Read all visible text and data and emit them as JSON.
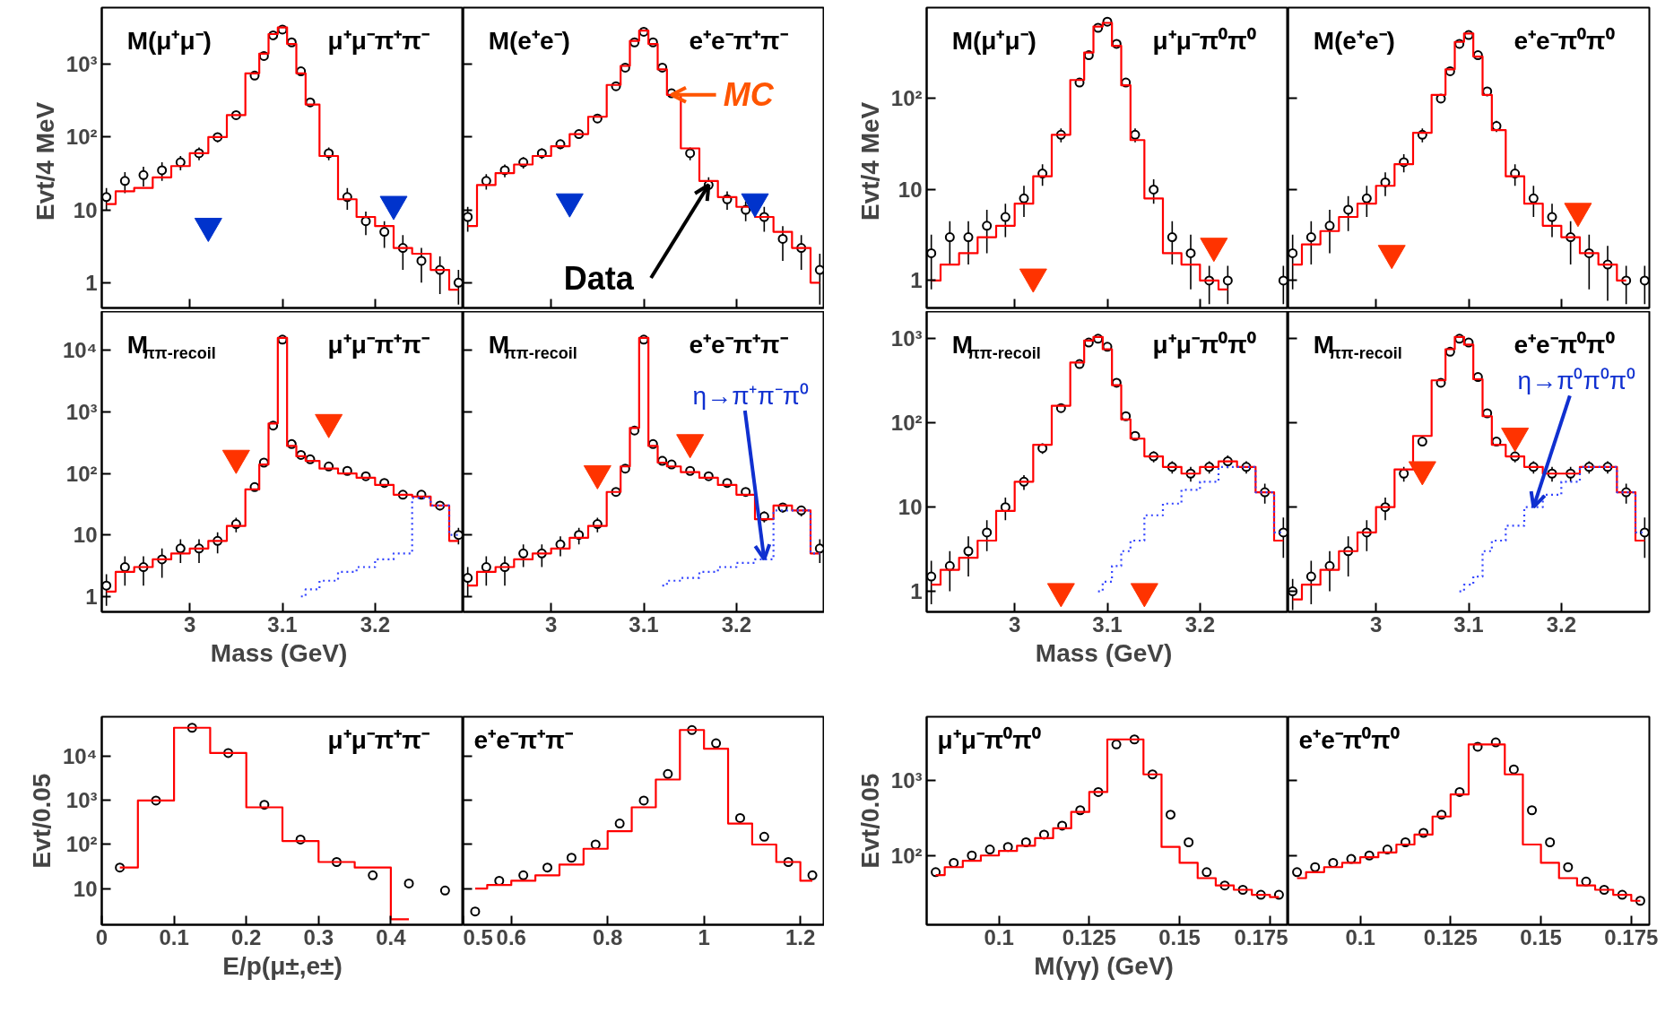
{
  "chart_data": [
    {
      "type": "scatter",
      "annotations": [
        "M(μ⁺μ⁻)",
        "μ⁺μ⁻π⁺π⁻"
      ],
      "ylabel": "Evt/4  MeV",
      "log": true,
      "tick_labels": "y",
      "xlim": [
        2.905,
        3.295
      ],
      "xticks": [
        3,
        3.1,
        3.2
      ],
      "ylim": [
        0.45,
        6000
      ],
      "yticks": [
        1,
        10,
        {
          "value": 100,
          "label": "10²"
        },
        {
          "value": 1000,
          "label": "10³"
        }
      ],
      "x": [
        2.91,
        2.93,
        2.95,
        2.97,
        2.99,
        3.01,
        3.03,
        3.05,
        3.07,
        3.08,
        3.09,
        3.1,
        3.11,
        3.12,
        3.13,
        3.15,
        3.17,
        3.19,
        3.21,
        3.23,
        3.25,
        3.27,
        3.29
      ],
      "series": [
        {
          "marker": "circle",
          "color": "#000000",
          "values": [
            15,
            25,
            30,
            35,
            45,
            60,
            100,
            200,
            700,
            1300,
            2500,
            3000,
            2000,
            800,
            300,
            60,
            15,
            7,
            5,
            3,
            2,
            1.5,
            1
          ],
          "errors": [
            5,
            8,
            9,
            10,
            10,
            12,
            15,
            null,
            null,
            null,
            null,
            null,
            null,
            null,
            null,
            12,
            5,
            2.5,
            2,
            1.5,
            1,
            0.8,
            0.5
          ]
        },
        {
          "type": "step",
          "color": "#ff0000",
          "values": [
            12,
            18,
            20,
            28,
            40,
            60,
            100,
            200,
            750,
            1400,
            2600,
            3200,
            1900,
            750,
            280,
            55,
            14,
            8,
            6,
            3,
            2.5,
            1.5,
            0.8
          ]
        },
        {
          "marker": "triangle",
          "color": "#0033cc",
          "x": [
            3.02,
            3.22
          ],
          "values": [
            6,
            12
          ]
        }
      ]
    },
    {
      "type": "scatter",
      "annotations": [
        "M(e⁺e⁻)",
        "e⁺e⁻π⁺π⁻",
        {
          "text": "MC",
          "x": 3.13,
          "y": 380
        },
        {
          "text": "Data",
          "x": 3.17,
          "y": 22
        }
      ],
      "log": true,
      "tick_labels": false,
      "xlim": [
        2.905,
        3.295
      ],
      "xticks": [
        3,
        3.1,
        3.2
      ],
      "ylim": [
        0.45,
        6000
      ],
      "yticks": [
        1,
        10,
        100,
        1000
      ],
      "x": [
        2.91,
        2.93,
        2.95,
        2.97,
        2.99,
        3.01,
        3.03,
        3.05,
        3.07,
        3.08,
        3.09,
        3.1,
        3.11,
        3.12,
        3.13,
        3.15,
        3.17,
        3.19,
        3.21,
        3.23,
        3.25,
        3.27,
        3.29
      ],
      "series": [
        {
          "marker": "circle",
          "color": "#000000",
          "values": [
            8,
            25,
            35,
            45,
            60,
            80,
            110,
            180,
            500,
            900,
            2000,
            2800,
            2000,
            900,
            400,
            60,
            22,
            14,
            10,
            8,
            4,
            3,
            1.5
          ],
          "errors": [
            3,
            6,
            7,
            8,
            10,
            12,
            15,
            null,
            null,
            null,
            null,
            null,
            null,
            null,
            null,
            12,
            6,
            4,
            3,
            3,
            2,
            1.5,
            1
          ]
        },
        {
          "type": "step",
          "color": "#ff0000",
          "values": [
            6,
            22,
            32,
            42,
            55,
            75,
            110,
            190,
            520,
            950,
            2100,
            2900,
            1900,
            850,
            380,
            70,
            25,
            15,
            11,
            8,
            5,
            3,
            1
          ]
        },
        {
          "marker": "triangle",
          "color": "#0033cc",
          "x": [
            3.02,
            3.22
          ],
          "values": [
            13,
            13
          ]
        }
      ]
    },
    {
      "type": "scatter",
      "annotations": [
        "M(μ⁺μ⁻)",
        "μ⁺μ⁻π⁰π⁰"
      ],
      "ylabel": "Evt/4  MeV",
      "log": true,
      "tick_labels": "y",
      "xlim": [
        2.905,
        3.295
      ],
      "xticks": [
        3,
        3.1,
        3.2
      ],
      "ylim": [
        0.5,
        1000
      ],
      "yticks": [
        1,
        10,
        {
          "value": 100,
          "label": "10²"
        }
      ],
      "x": [
        2.91,
        2.93,
        2.95,
        2.97,
        2.99,
        3.01,
        3.03,
        3.05,
        3.07,
        3.08,
        3.09,
        3.1,
        3.11,
        3.12,
        3.13,
        3.15,
        3.17,
        3.19,
        3.21,
        3.23,
        3.25,
        3.27,
        3.29
      ],
      "series": [
        {
          "marker": "circle",
          "color": "#000000",
          "values": [
            2,
            3,
            3,
            4,
            5,
            8,
            15,
            40,
            150,
            300,
            600,
            700,
            400,
            150,
            40,
            10,
            3,
            2,
            1,
            1,
            null,
            null,
            1
          ],
          "errors": [
            1.2,
            1.5,
            1.5,
            2,
            2,
            3,
            4,
            7,
            null,
            null,
            null,
            null,
            null,
            null,
            7,
            3,
            1.5,
            1.2,
            0.45,
            0.45,
            null,
            null,
            0.45
          ]
        },
        {
          "type": "step",
          "color": "#ff0000",
          "values": [
            1,
            1.5,
            2,
            3,
            4,
            7,
            14,
            40,
            160,
            320,
            620,
            680,
            380,
            140,
            35,
            8,
            2,
            1.5,
            1,
            0.8,
            null,
            null,
            null
          ]
        },
        {
          "marker": "triangle",
          "color": "#ff3300",
          "x": [
            3.02,
            3.215
          ],
          "values": [
            1.1,
            2.4
          ]
        }
      ]
    },
    {
      "type": "scatter",
      "annotations": [
        "M(e⁺e⁻)",
        "e⁺e⁻π⁰π⁰"
      ],
      "log": true,
      "tick_labels": false,
      "xlim": [
        2.905,
        3.295
      ],
      "xticks": [
        3,
        3.1,
        3.2
      ],
      "ylim": [
        0.5,
        1000
      ],
      "yticks": [
        1,
        10,
        100
      ],
      "x": [
        2.91,
        2.93,
        2.95,
        2.97,
        2.99,
        3.01,
        3.03,
        3.05,
        3.07,
        3.08,
        3.09,
        3.1,
        3.11,
        3.12,
        3.13,
        3.15,
        3.17,
        3.19,
        3.21,
        3.23,
        3.25,
        3.27,
        3.29
      ],
      "series": [
        {
          "marker": "circle",
          "color": "#000000",
          "values": [
            2,
            3,
            4,
            6,
            8,
            12,
            20,
            40,
            100,
            200,
            400,
            500,
            300,
            120,
            50,
            15,
            8,
            5,
            3,
            2,
            1.5,
            1,
            1
          ],
          "errors": [
            1.2,
            1.5,
            2,
            2.5,
            3,
            3.5,
            4.5,
            7,
            null,
            null,
            null,
            null,
            null,
            null,
            7,
            4,
            3,
            2,
            1.5,
            1.2,
            0.9,
            0.45,
            0.45
          ]
        },
        {
          "type": "step",
          "color": "#ff0000",
          "values": [
            1.5,
            2.5,
            3.5,
            5,
            7,
            11,
            19,
            42,
            110,
            210,
            420,
            520,
            290,
            110,
            45,
            14,
            7,
            4,
            3,
            2,
            1.5,
            1,
            null
          ]
        },
        {
          "marker": "triangle",
          "color": "#ff3300",
          "x": [
            3.017,
            3.218
          ],
          "values": [
            2,
            5.8
          ]
        }
      ]
    },
    {
      "type": "scatter",
      "annotations": [
        "M$_{ππ-recoil}$",
        "μ⁺μ⁻π⁺π⁻"
      ],
      "xlabel": "Mass  (GeV)",
      "log": true,
      "xlim": [
        2.905,
        3.295
      ],
      "xticks": [
        3,
        3.1,
        3.2
      ],
      "ylim": [
        0.56,
        43000
      ],
      "yticks": [
        1,
        10,
        {
          "value": 100,
          "label": "10²"
        },
        {
          "value": 1000,
          "label": "10³"
        },
        {
          "value": 10000,
          "label": "10⁴"
        }
      ],
      "x": [
        2.91,
        2.93,
        2.95,
        2.97,
        2.99,
        3.01,
        3.03,
        3.05,
        3.07,
        3.08,
        3.09,
        3.1,
        3.11,
        3.12,
        3.13,
        3.15,
        3.17,
        3.19,
        3.21,
        3.23,
        3.25,
        3.27,
        3.29
      ],
      "series": [
        {
          "marker": "circle",
          "color": "#000000",
          "values": [
            1.5,
            3,
            3,
            4,
            6,
            6,
            8,
            15,
            60,
            150,
            600,
            15000,
            300,
            200,
            170,
            130,
            110,
            90,
            70,
            45,
            45,
            30,
            10
          ],
          "errors": [
            0.8,
            1.5,
            1.5,
            2,
            2.5,
            2.5,
            3,
            4,
            8,
            null,
            null,
            null,
            null,
            null,
            null,
            null,
            null,
            null,
            null,
            7,
            7,
            5,
            3
          ]
        },
        {
          "type": "step",
          "color": "#ff0000",
          "values": [
            1.2,
            2.5,
            3,
            4,
            5,
            6,
            8,
            14,
            55,
            140,
            650,
            16000,
            280,
            190,
            160,
            120,
            100,
            85,
            65,
            45,
            42,
            30,
            8
          ]
        },
        {
          "type": "step",
          "color": "#3344ff",
          "line_style": "dotted",
          "values": [
            null,
            null,
            null,
            null,
            null,
            null,
            null,
            null,
            null,
            null,
            null,
            null,
            null,
            1,
            1.3,
            1.8,
            2.5,
            3,
            4,
            5,
            40,
            30,
            10
          ]
        },
        {
          "marker": "triangle",
          "color": "#ff3300",
          "x": [
            3.05,
            3.15
          ],
          "values": [
            178,
            680
          ]
        }
      ]
    },
    {
      "type": "scatter",
      "annotations": [
        "M$_{ππ-recoil}$",
        "e⁺e⁻π⁺π⁻",
        {
          "text": "η→π⁺π⁻π⁰",
          "x": 3.23,
          "y": 4
        }
      ],
      "log": true,
      "tick_labels": "x",
      "xlim": [
        2.905,
        3.295
      ],
      "xticks": [
        3,
        3.1,
        3.2
      ],
      "ylim": [
        0.56,
        43000
      ],
      "yticks": [
        1,
        10,
        100,
        1000,
        10000
      ],
      "x": [
        2.91,
        2.93,
        2.95,
        2.97,
        2.99,
        3.01,
        3.03,
        3.05,
        3.07,
        3.08,
        3.09,
        3.1,
        3.11,
        3.12,
        3.13,
        3.15,
        3.17,
        3.19,
        3.21,
        3.23,
        3.25,
        3.27,
        3.29
      ],
      "series": [
        {
          "marker": "circle",
          "color": "#000000",
          "values": [
            2,
            3,
            3,
            5,
            5,
            7,
            10,
            15,
            50,
            120,
            500,
            15000,
            300,
            160,
            140,
            110,
            90,
            70,
            50,
            20,
            28,
            25,
            6
          ],
          "errors": [
            1,
            1.5,
            1.5,
            2,
            2,
            2.5,
            3,
            4,
            7,
            null,
            null,
            null,
            null,
            null,
            null,
            null,
            null,
            null,
            null,
            4,
            5,
            5,
            2.5
          ]
        },
        {
          "type": "step",
          "color": "#ff0000",
          "values": [
            1.5,
            2.5,
            3,
            4,
            5,
            6,
            9,
            14,
            50,
            130,
            550,
            16000,
            280,
            150,
            130,
            105,
            85,
            65,
            45,
            18,
            30,
            25,
            5
          ]
        },
        {
          "type": "step",
          "color": "#3344ff",
          "line_style": "dotted",
          "values": [
            null,
            null,
            null,
            null,
            null,
            null,
            null,
            null,
            null,
            null,
            null,
            null,
            null,
            1.5,
            1.8,
            2,
            2.5,
            3,
            3.5,
            4,
            25,
            25,
            5
          ]
        },
        {
          "marker": "triangle",
          "color": "#ff3300",
          "x": [
            3.05,
            3.15
          ],
          "values": [
            100,
            320
          ]
        }
      ]
    },
    {
      "type": "scatter",
      "annotations": [
        "M$_{ππ-recoil}$",
        "μ⁺μ⁻π⁰π⁰"
      ],
      "xlabel": "Mass  (GeV)",
      "log": true,
      "xlim": [
        2.905,
        3.295
      ],
      "xticks": [
        3,
        3.1,
        3.2
      ],
      "ylim": [
        0.57,
        2100
      ],
      "yticks": [
        1,
        10,
        {
          "value": 100,
          "label": "10²"
        },
        {
          "value": 1000,
          "label": "10³"
        }
      ],
      "x": [
        2.91,
        2.93,
        2.95,
        2.97,
        2.99,
        3.01,
        3.03,
        3.05,
        3.07,
        3.08,
        3.09,
        3.1,
        3.11,
        3.12,
        3.13,
        3.15,
        3.17,
        3.19,
        3.21,
        3.23,
        3.25,
        3.27,
        3.29
      ],
      "series": [
        {
          "marker": "circle",
          "color": "#000000",
          "values": [
            1.5,
            2,
            3,
            5,
            10,
            20,
            50,
            150,
            500,
            900,
            1000,
            800,
            300,
            120,
            70,
            40,
            30,
            25,
            30,
            35,
            30,
            15,
            5
          ],
          "errors": [
            0.8,
            1,
            1.5,
            2,
            3,
            4,
            7,
            null,
            null,
            null,
            null,
            null,
            null,
            null,
            null,
            6,
            5,
            5,
            5,
            6,
            5,
            4,
            2.5
          ]
        },
        {
          "type": "step",
          "color": "#ff0000",
          "values": [
            1.2,
            1.8,
            2.5,
            4,
            9,
            20,
            55,
            160,
            520,
            950,
            1050,
            750,
            280,
            110,
            65,
            40,
            30,
            25,
            30,
            35,
            30,
            15,
            4
          ]
        },
        {
          "type": "step",
          "color": "#3344ff",
          "line_style": "dotted",
          "values": [
            null,
            null,
            null,
            null,
            null,
            null,
            null,
            null,
            null,
            null,
            1,
            1.3,
            2,
            3,
            4,
            8,
            11,
            16,
            20,
            30,
            30,
            15,
            5
          ]
        },
        {
          "marker": "triangle",
          "color": "#ff3300",
          "x": [
            3.05,
            3.14
          ],
          "values": [
            1,
            1
          ]
        }
      ]
    },
    {
      "type": "scatter",
      "annotations": [
        "M$_{ππ-recoil}$",
        "e⁺e⁻π⁰π⁰",
        {
          "text": "η→π⁰π⁰π⁰",
          "x": 3.17,
          "y": 10
        }
      ],
      "log": true,
      "tick_labels": "x",
      "xlim": [
        2.905,
        3.295
      ],
      "xticks": [
        3,
        3.1,
        3.2
      ],
      "ylim": [
        0.57,
        2100
      ],
      "yticks": [
        1,
        10,
        100,
        1000
      ],
      "x": [
        2.91,
        2.93,
        2.95,
        2.97,
        2.99,
        3.01,
        3.03,
        3.05,
        3.07,
        3.08,
        3.09,
        3.1,
        3.11,
        3.12,
        3.13,
        3.15,
        3.17,
        3.19,
        3.21,
        3.23,
        3.25,
        3.27,
        3.29
      ],
      "series": [
        {
          "marker": "circle",
          "color": "#000000",
          "values": [
            1,
            1.5,
            2,
            3,
            5,
            10,
            25,
            60,
            300,
            700,
            1000,
            900,
            350,
            130,
            60,
            40,
            30,
            25,
            25,
            30,
            30,
            15,
            5
          ],
          "errors": [
            0.4,
            0.8,
            1,
            1.5,
            2,
            3,
            5,
            null,
            null,
            null,
            null,
            null,
            null,
            null,
            null,
            6,
            5,
            5,
            5,
            5,
            5,
            4,
            2.5
          ]
        },
        {
          "type": "step",
          "color": "#ff0000",
          "values": [
            0.8,
            1.2,
            1.8,
            3,
            5,
            10,
            28,
            70,
            320,
            750,
            1050,
            850,
            330,
            120,
            55,
            40,
            30,
            25,
            25,
            30,
            30,
            15,
            4
          ]
        },
        {
          "type": "step",
          "color": "#3344ff",
          "line_style": "dotted",
          "values": [
            null,
            null,
            null,
            null,
            null,
            null,
            null,
            null,
            null,
            null,
            1,
            1.2,
            1.5,
            3,
            4,
            6,
            10,
            14,
            20,
            30,
            30,
            15,
            5
          ]
        },
        {
          "marker": "triangle",
          "color": "#ff3300",
          "x": [
            3.05,
            3.15
          ],
          "values": [
            28,
            70
          ]
        }
      ]
    },
    {
      "type": "scatter",
      "annotations": [
        "μ⁺μ⁻π⁺π⁻"
      ],
      "ylabel": "Evt/0.05",
      "xlabel": "E/p(μ±,e±)",
      "log": true,
      "xlim": [
        0,
        0.5
      ],
      "xticks": [
        0,
        0.1,
        0.2,
        0.3,
        0.4
      ],
      "ylim": [
        1.5,
        80000
      ],
      "yticks": [
        10,
        {
          "value": 100,
          "label": "10²"
        },
        {
          "value": 1000,
          "label": "10³"
        },
        {
          "value": 10000,
          "label": "10⁴"
        }
      ],
      "x": [
        0.025,
        0.075,
        0.125,
        0.175,
        0.225,
        0.275,
        0.325,
        0.375,
        0.425,
        0.475
      ],
      "series": [
        {
          "marker": "circle",
          "color": "#000000",
          "values": [
            30,
            1000,
            45000,
            12000,
            800,
            130,
            40,
            20,
            13,
            9
          ]
        },
        {
          "type": "step",
          "color": "#ff0000",
          "values": [
            30,
            1000,
            45000,
            12000,
            700,
            120,
            40,
            30,
            2,
            null
          ]
        }
      ]
    },
    {
      "type": "scatter",
      "annotations": [
        "e⁺e⁻π⁺π⁻"
      ],
      "log": true,
      "tick_labels": "x",
      "xlim": [
        0.5,
        1.25
      ],
      "xticks": [
        0.5,
        0.6,
        0.8,
        1,
        1.2
      ],
      "ylim": [
        1.5,
        80000
      ],
      "yticks": [
        10,
        100,
        1000,
        10000
      ],
      "x": [
        0.525,
        0.575,
        0.625,
        0.675,
        0.725,
        0.775,
        0.825,
        0.875,
        0.925,
        0.975,
        1.025,
        1.075,
        1.125,
        1.175,
        1.225
      ],
      "series": [
        {
          "marker": "circle",
          "color": "#000000",
          "values": [
            3,
            15,
            20,
            30,
            50,
            100,
            300,
            1000,
            4000,
            40000,
            20000,
            400,
            150,
            40,
            20
          ]
        },
        {
          "type": "step",
          "color": "#ff0000",
          "values": [
            10,
            12,
            15,
            20,
            35,
            80,
            200,
            700,
            3000,
            40000,
            15000,
            300,
            100,
            40,
            15
          ]
        }
      ]
    },
    {
      "type": "scatter",
      "annotations": [
        "μ⁺μ⁻π⁰π⁰"
      ],
      "ylabel": "Evt/0.05",
      "xlabel": "M(γγ)  (GeV)",
      "log": true,
      "xlim": [
        0.08,
        0.18
      ],
      "xticks": [
        0.1,
        0.125,
        0.15,
        0.175
      ],
      "ylim": [
        12,
        7000
      ],
      "yticks": [
        {
          "value": 100,
          "label": "10²"
        },
        {
          "value": 1000,
          "label": "10³"
        }
      ],
      "x": [
        0.0825,
        0.0875,
        0.0925,
        0.0975,
        0.1025,
        0.1075,
        0.1125,
        0.1175,
        0.1225,
        0.1275,
        0.1325,
        0.1375,
        0.1425,
        0.1475,
        0.1525,
        0.1575,
        0.1625,
        0.1675,
        0.1725,
        0.1775
      ],
      "series": [
        {
          "marker": "circle",
          "color": "#000000",
          "values": [
            60,
            80,
            100,
            120,
            130,
            150,
            190,
            250,
            400,
            700,
            3000,
            3500,
            1200,
            350,
            150,
            60,
            40,
            35,
            30,
            30
          ]
        },
        {
          "type": "step",
          "color": "#ff0000",
          "values": [
            55,
            70,
            85,
            100,
            115,
            135,
            170,
            230,
            380,
            700,
            3500,
            3500,
            1200,
            130,
            80,
            50,
            40,
            35,
            30,
            28
          ]
        }
      ]
    },
    {
      "type": "scatter",
      "annotations": [
        "e⁺e⁻π⁰π⁰"
      ],
      "log": true,
      "tick_labels": "x",
      "xlim": [
        0.08,
        0.18
      ],
      "xticks": [
        0.1,
        0.125,
        0.15,
        0.175
      ],
      "ylim": [
        12,
        7000
      ],
      "yticks": [
        100,
        1000
      ],
      "x": [
        0.0825,
        0.0875,
        0.0925,
        0.0975,
        0.1025,
        0.1075,
        0.1125,
        0.1175,
        0.1225,
        0.1275,
        0.1325,
        0.1375,
        0.1425,
        0.1475,
        0.1525,
        0.1575,
        0.1625,
        0.1675,
        0.1725,
        0.1775
      ],
      "series": [
        {
          "marker": "circle",
          "color": "#000000",
          "values": [
            60,
            70,
            80,
            90,
            100,
            120,
            150,
            200,
            350,
            700,
            2800,
            3200,
            1400,
            400,
            150,
            70,
            45,
            35,
            30,
            25
          ]
        },
        {
          "type": "step",
          "color": "#ff0000",
          "values": [
            50,
            60,
            70,
            80,
            95,
            110,
            140,
            190,
            330,
            650,
            3000,
            3000,
            1200,
            140,
            80,
            50,
            40,
            35,
            30,
            25
          ]
        }
      ]
    }
  ]
}
